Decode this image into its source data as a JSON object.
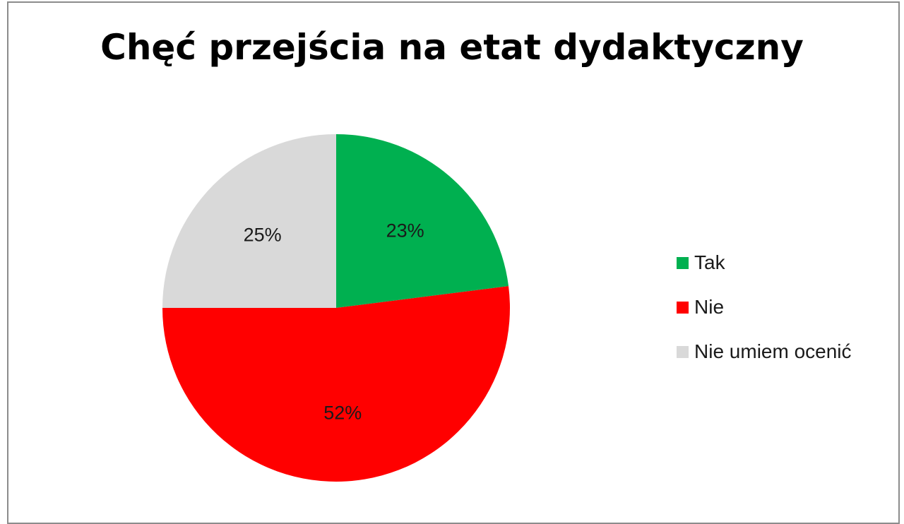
{
  "chart_data": {
    "type": "pie",
    "title": "Chęć przejścia na etat dydaktyczny",
    "categories": [
      "Tak",
      "Nie",
      "Nie umiem ocenić"
    ],
    "values": [
      23,
      52,
      25
    ],
    "value_labels": [
      "23%",
      "52%",
      "25%"
    ],
    "colors": [
      "#00b050",
      "#ff0000",
      "#d9d9d9"
    ],
    "legend_position": "right",
    "start_angle": "top, clockwise"
  }
}
